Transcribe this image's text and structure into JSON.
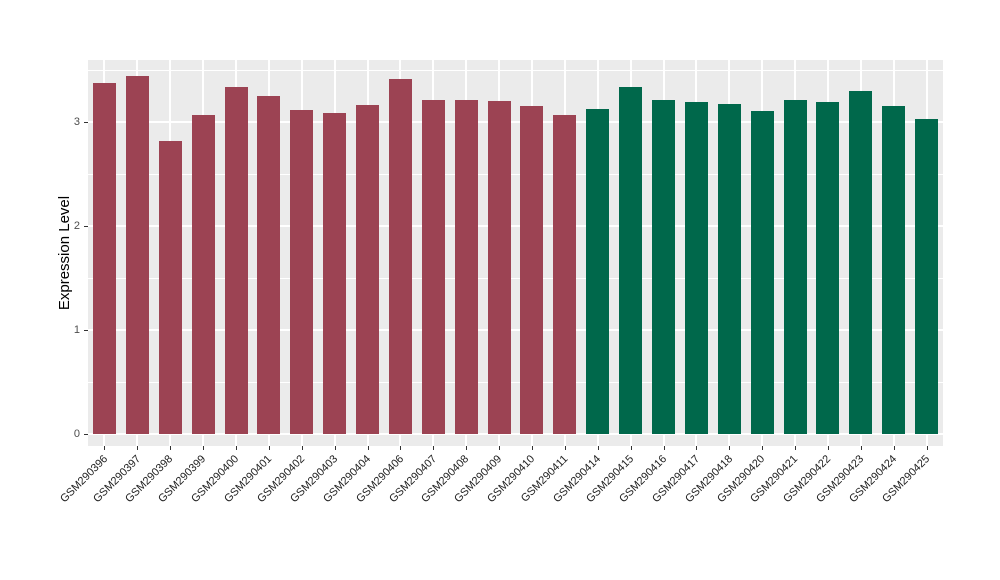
{
  "chart_data": {
    "type": "bar",
    "title": "",
    "xlabel": "",
    "ylabel": "Expression Level",
    "ylim": [
      0,
      3.58
    ],
    "yticks_major": [
      0,
      1,
      2,
      3
    ],
    "yticks_minor": [
      0.5,
      1.5,
      2.5,
      3.5
    ],
    "grid": "on",
    "legend": "none",
    "panel_background": "#EBEBEB",
    "gridline_color": "#FFFFFF",
    "axis_text_color": "#4D4D4D",
    "categories": [
      "GSM290396",
      "GSM290397",
      "GSM290398",
      "GSM290399",
      "GSM290400",
      "GSM290401",
      "GSM290402",
      "GSM290403",
      "GSM290404",
      "GSM290406",
      "GSM290407",
      "GSM290408",
      "GSM290409",
      "GSM290410",
      "GSM290411",
      "GSM290414",
      "GSM290415",
      "GSM290416",
      "GSM290417",
      "GSM290418",
      "GSM290420",
      "GSM290421",
      "GSM290422",
      "GSM290423",
      "GSM290424",
      "GSM290425"
    ],
    "values": [
      3.38,
      3.44,
      2.82,
      3.07,
      3.34,
      3.25,
      3.12,
      3.09,
      3.16,
      3.41,
      3.21,
      3.21,
      3.2,
      3.15,
      3.07,
      3.13,
      3.34,
      3.21,
      3.19,
      3.17,
      3.11,
      3.21,
      3.19,
      3.3,
      3.15,
      3.03
    ],
    "groups": [
      "group1",
      "group1",
      "group1",
      "group1",
      "group1",
      "group1",
      "group1",
      "group1",
      "group1",
      "group1",
      "group1",
      "group1",
      "group1",
      "group1",
      "group1",
      "group2",
      "group2",
      "group2",
      "group2",
      "group2",
      "group2",
      "group2",
      "group2",
      "group2",
      "group2",
      "group2"
    ],
    "group_colors": {
      "group1": "#9C4353",
      "group2": "#00684B"
    }
  }
}
